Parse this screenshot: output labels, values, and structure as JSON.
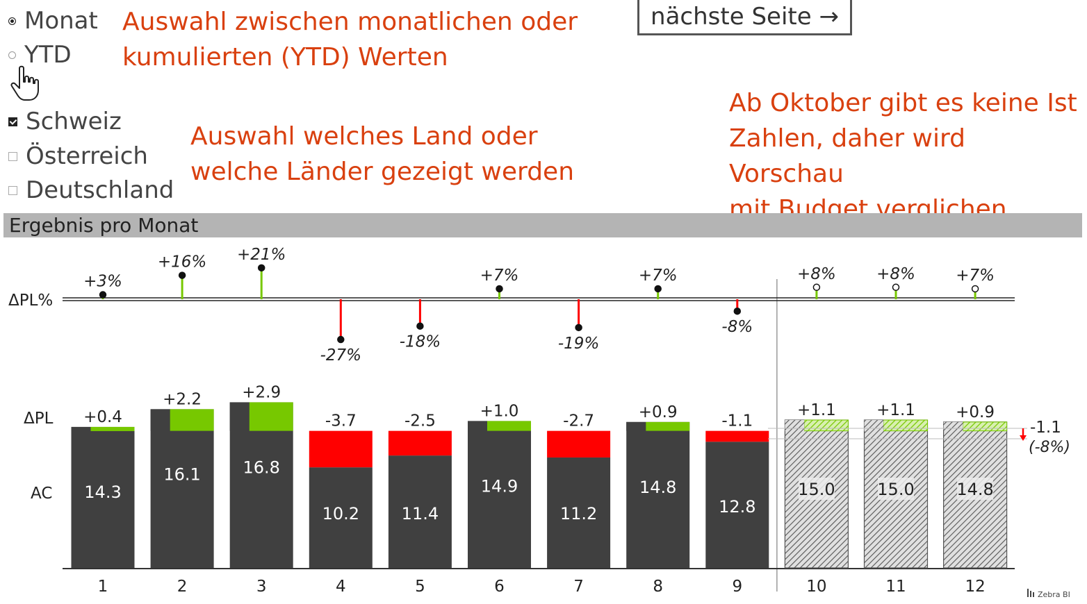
{
  "period_selector": {
    "options": [
      {
        "label": "Monat",
        "selected": true
      },
      {
        "label": "YTD",
        "selected": false
      }
    ]
  },
  "country_selector": {
    "options": [
      {
        "label": "Schweiz",
        "checked": true
      },
      {
        "label": "Österreich",
        "checked": false
      },
      {
        "label": "Deutschland",
        "checked": false
      }
    ]
  },
  "notes": {
    "period_note": [
      "Auswahl zwischen monatlichen oder",
      "kumulierten (YTD) Werten"
    ],
    "country_note": [
      "Auswahl welches Land oder",
      "welche Länder gezeigt werden"
    ],
    "forecast_note": [
      "Ab Oktober gibt es keine Ist",
      "Zahlen, daher wird Vorschau",
      "mit Budget verglichen"
    ]
  },
  "next_button": {
    "label": "nächste Seite →"
  },
  "section": {
    "title": "Ergebnis pro Monat"
  },
  "colors": {
    "actual": "#404040",
    "positive": "#77c800",
    "negative": "#ff0000",
    "note": "#d9400f",
    "section_bar": "#b4b4b4"
  },
  "chart_data": {
    "type": "bar",
    "row_labels": {
      "delta_pct": "ΔPL%",
      "delta": "ΔPL",
      "actual": "AC"
    },
    "categories": [
      "1",
      "2",
      "3",
      "4",
      "5",
      "6",
      "7",
      "8",
      "9",
      "10",
      "11",
      "12"
    ],
    "series": [
      {
        "name": "AC",
        "values": [
          14.3,
          16.1,
          16.8,
          10.2,
          11.4,
          14.9,
          11.2,
          14.8,
          12.8,
          15.0,
          15.0,
          14.8
        ],
        "labels": [
          "14.3",
          "16.1",
          "16.8",
          "10.2",
          "11.4",
          "14.9",
          "11.2",
          "14.8",
          "12.8",
          "15.0",
          "15.0",
          "14.8"
        ]
      },
      {
        "name": "ΔPL",
        "values": [
          0.4,
          2.2,
          2.9,
          -3.7,
          -2.5,
          1.0,
          -2.7,
          0.9,
          -1.1,
          1.1,
          1.1,
          0.9
        ],
        "labels": [
          "+0.4",
          "+2.2",
          "+2.9",
          "-3.7",
          "-2.5",
          "+1.0",
          "-2.7",
          "+0.9",
          "-1.1",
          "+1.1",
          "+1.1",
          "+0.9"
        ]
      },
      {
        "name": "ΔPL%",
        "values": [
          3,
          16,
          21,
          -27,
          -18,
          7,
          -19,
          7,
          -8,
          8,
          8,
          7
        ],
        "labels": [
          "+3%",
          "+16%",
          "+21%",
          "-27%",
          "-18%",
          "+7%",
          "-19%",
          "+7%",
          "-8%",
          "+8%",
          "+8%",
          "+7%"
        ]
      }
    ],
    "forecast_from_category": "10",
    "total_delta": {
      "value": -1.1,
      "label": "-1.1",
      "pct_label": "(-8%)"
    },
    "watermark": "Zebra BI"
  }
}
